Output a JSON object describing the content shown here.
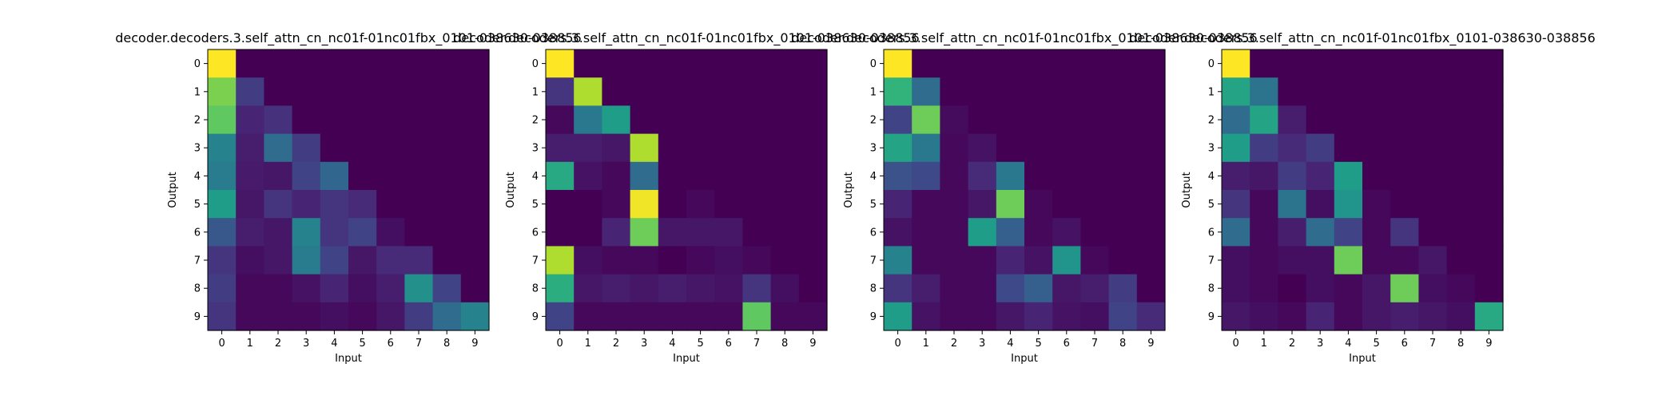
{
  "chart_data": [
    {
      "type": "heatmap",
      "title": "decoder.decoders.3.self_attn_cn_nc01f-01nc01fbx_0101-038630-038856",
      "xlabel": "Input",
      "ylabel": "Output",
      "x_ticks": [
        "0",
        "1",
        "2",
        "3",
        "4",
        "5",
        "6",
        "7",
        "8",
        "9"
      ],
      "y_ticks": [
        "0",
        "1",
        "2",
        "3",
        "4",
        "5",
        "6",
        "7",
        "8",
        "9"
      ],
      "colormap": "viridis",
      "matrix": [
        [
          1.0,
          0.0,
          0.0,
          0.0,
          0.0,
          0.0,
          0.0,
          0.0,
          0.0,
          0.0
        ],
        [
          0.8,
          0.18,
          0.0,
          0.0,
          0.0,
          0.0,
          0.0,
          0.0,
          0.0,
          0.0
        ],
        [
          0.75,
          0.1,
          0.14,
          0.0,
          0.0,
          0.0,
          0.0,
          0.0,
          0.0,
          0.0
        ],
        [
          0.45,
          0.08,
          0.35,
          0.18,
          0.0,
          0.0,
          0.0,
          0.0,
          0.0,
          0.0
        ],
        [
          0.42,
          0.07,
          0.06,
          0.2,
          0.33,
          0.0,
          0.0,
          0.0,
          0.0,
          0.0
        ],
        [
          0.55,
          0.06,
          0.15,
          0.1,
          0.15,
          0.12,
          0.0,
          0.0,
          0.0,
          0.0
        ],
        [
          0.27,
          0.08,
          0.06,
          0.45,
          0.15,
          0.2,
          0.04,
          0.0,
          0.0,
          0.0
        ],
        [
          0.15,
          0.04,
          0.06,
          0.42,
          0.2,
          0.06,
          0.12,
          0.12,
          0.0,
          0.0
        ],
        [
          0.18,
          0.02,
          0.02,
          0.05,
          0.1,
          0.04,
          0.08,
          0.5,
          0.2,
          0.0
        ],
        [
          0.15,
          0.02,
          0.02,
          0.02,
          0.04,
          0.02,
          0.06,
          0.18,
          0.35,
          0.45
        ]
      ]
    },
    {
      "type": "heatmap",
      "title": "decoder.decoders.3.self_attn_cn_nc01f-01nc01fbx_0101-038630-038856",
      "xlabel": "Input",
      "ylabel": "Output",
      "x_ticks": [
        "0",
        "1",
        "2",
        "3",
        "4",
        "5",
        "6",
        "7",
        "8",
        "9"
      ],
      "y_ticks": [
        "0",
        "1",
        "2",
        "3",
        "4",
        "5",
        "6",
        "7",
        "8",
        "9"
      ],
      "colormap": "viridis",
      "matrix": [
        [
          1.0,
          0.0,
          0.0,
          0.0,
          0.0,
          0.0,
          0.0,
          0.0,
          0.0,
          0.0
        ],
        [
          0.15,
          0.88,
          0.0,
          0.0,
          0.0,
          0.0,
          0.0,
          0.0,
          0.0,
          0.0
        ],
        [
          0.02,
          0.4,
          0.55,
          0.0,
          0.0,
          0.0,
          0.0,
          0.0,
          0.0,
          0.0
        ],
        [
          0.08,
          0.08,
          0.06,
          0.88,
          0.0,
          0.0,
          0.0,
          0.0,
          0.0,
          0.0
        ],
        [
          0.6,
          0.05,
          0.02,
          0.35,
          0.0,
          0.0,
          0.0,
          0.0,
          0.0,
          0.0
        ],
        [
          0.0,
          0.0,
          0.02,
          0.98,
          0.0,
          0.02,
          0.0,
          0.0,
          0.0,
          0.0
        ],
        [
          0.0,
          0.0,
          0.1,
          0.78,
          0.06,
          0.06,
          0.06,
          0.0,
          0.0,
          0.0
        ],
        [
          0.88,
          0.04,
          0.02,
          0.02,
          0.0,
          0.02,
          0.04,
          0.02,
          0.0,
          0.0
        ],
        [
          0.62,
          0.06,
          0.08,
          0.06,
          0.08,
          0.06,
          0.05,
          0.15,
          0.04,
          0.0
        ],
        [
          0.2,
          0.02,
          0.02,
          0.02,
          0.02,
          0.02,
          0.02,
          0.75,
          0.02,
          0.02
        ]
      ]
    },
    {
      "type": "heatmap",
      "title": "decoder.decoders.3.self_attn_cn_nc01f-01nc01fbx_0101-038630-038856",
      "xlabel": "Input",
      "ylabel": "Output",
      "x_ticks": [
        "0",
        "1",
        "2",
        "3",
        "4",
        "5",
        "6",
        "7",
        "8",
        "9"
      ],
      "y_ticks": [
        "0",
        "1",
        "2",
        "3",
        "4",
        "5",
        "6",
        "7",
        "8",
        "9"
      ],
      "colormap": "viridis",
      "matrix": [
        [
          1.0,
          0.0,
          0.0,
          0.0,
          0.0,
          0.0,
          0.0,
          0.0,
          0.0,
          0.0
        ],
        [
          0.65,
          0.35,
          0.0,
          0.0,
          0.0,
          0.0,
          0.0,
          0.0,
          0.0,
          0.0
        ],
        [
          0.2,
          0.78,
          0.03,
          0.0,
          0.0,
          0.0,
          0.0,
          0.0,
          0.0,
          0.0
        ],
        [
          0.58,
          0.4,
          0.02,
          0.05,
          0.0,
          0.0,
          0.0,
          0.0,
          0.0,
          0.0
        ],
        [
          0.25,
          0.22,
          0.02,
          0.12,
          0.4,
          0.0,
          0.0,
          0.0,
          0.0,
          0.0
        ],
        [
          0.1,
          0.02,
          0.02,
          0.06,
          0.78,
          0.02,
          0.0,
          0.0,
          0.0,
          0.0
        ],
        [
          0.05,
          0.02,
          0.02,
          0.55,
          0.3,
          0.02,
          0.05,
          0.0,
          0.0,
          0.0
        ],
        [
          0.45,
          0.02,
          0.02,
          0.02,
          0.1,
          0.05,
          0.52,
          0.02,
          0.0,
          0.0
        ],
        [
          0.15,
          0.08,
          0.02,
          0.02,
          0.22,
          0.3,
          0.06,
          0.08,
          0.18,
          0.0
        ],
        [
          0.55,
          0.05,
          0.02,
          0.02,
          0.06,
          0.1,
          0.05,
          0.04,
          0.2,
          0.12
        ]
      ]
    },
    {
      "type": "heatmap",
      "title": "decoder.decoders.3.self_attn_cn_nc01f-01nc01fbx_0101-038630-038856",
      "xlabel": "Input",
      "ylabel": "Output",
      "x_ticks": [
        "0",
        "1",
        "2",
        "3",
        "4",
        "5",
        "6",
        "7",
        "8",
        "9"
      ],
      "y_ticks": [
        "0",
        "1",
        "2",
        "3",
        "4",
        "5",
        "6",
        "7",
        "8",
        "9"
      ],
      "colormap": "viridis",
      "matrix": [
        [
          1.0,
          0.0,
          0.0,
          0.0,
          0.0,
          0.0,
          0.0,
          0.0,
          0.0,
          0.0
        ],
        [
          0.58,
          0.38,
          0.0,
          0.0,
          0.0,
          0.0,
          0.0,
          0.0,
          0.0,
          0.0
        ],
        [
          0.35,
          0.58,
          0.08,
          0.0,
          0.0,
          0.0,
          0.0,
          0.0,
          0.0,
          0.0
        ],
        [
          0.55,
          0.18,
          0.12,
          0.18,
          0.0,
          0.0,
          0.0,
          0.0,
          0.0,
          0.0
        ],
        [
          0.08,
          0.06,
          0.18,
          0.1,
          0.55,
          0.0,
          0.0,
          0.0,
          0.0,
          0.0
        ],
        [
          0.15,
          0.02,
          0.38,
          0.04,
          0.52,
          0.02,
          0.0,
          0.0,
          0.0,
          0.0
        ],
        [
          0.35,
          0.02,
          0.08,
          0.35,
          0.2,
          0.02,
          0.15,
          0.0,
          0.0,
          0.0
        ],
        [
          0.04,
          0.02,
          0.04,
          0.04,
          0.78,
          0.02,
          0.02,
          0.06,
          0.0,
          0.0
        ],
        [
          0.04,
          0.02,
          0.0,
          0.04,
          0.02,
          0.06,
          0.78,
          0.04,
          0.02,
          0.0
        ],
        [
          0.06,
          0.04,
          0.02,
          0.1,
          0.02,
          0.06,
          0.08,
          0.06,
          0.04,
          0.6
        ]
      ]
    }
  ]
}
